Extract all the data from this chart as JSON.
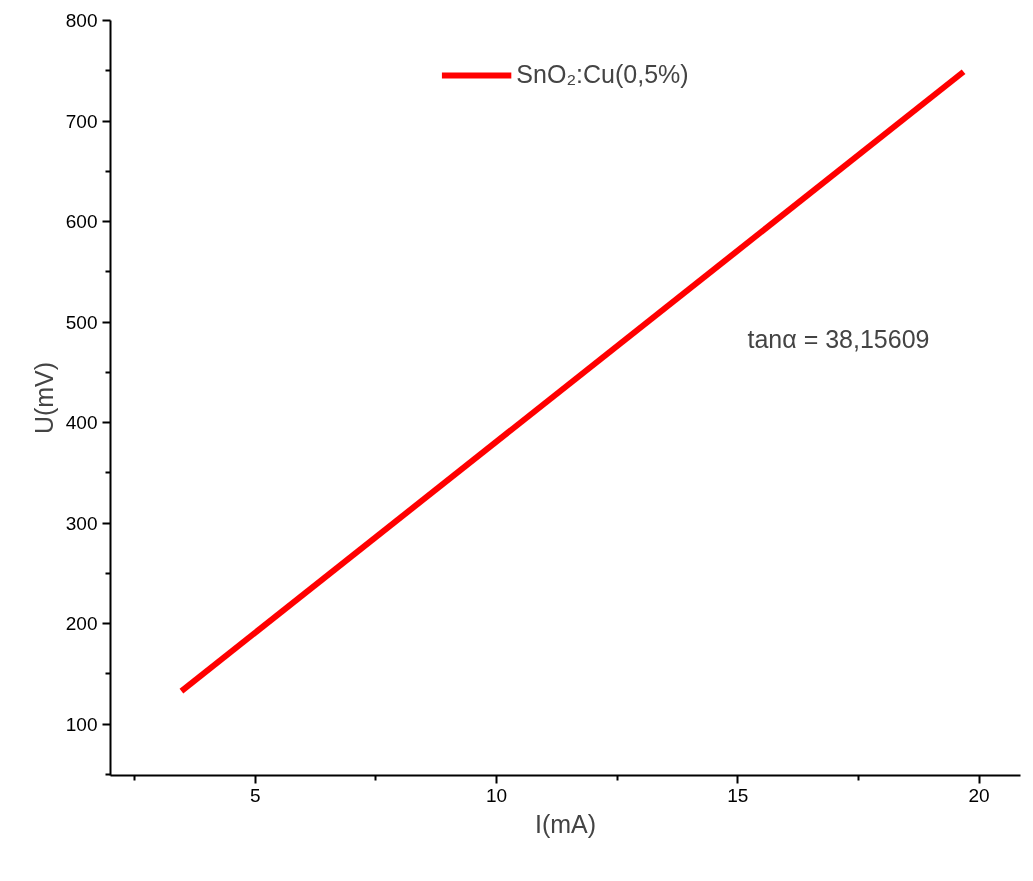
{
  "chart_data": {
    "type": "line",
    "xlabel": "I(mA)",
    "ylabel": "U(mV)",
    "series": [
      {
        "name": "SnO₂:Cu(0,5%)",
        "color": "#ff0000",
        "x": [
          3.47,
          19.68
        ],
        "values": [
          133,
          749
        ]
      }
    ],
    "xlim": [
      2,
      20.86
    ],
    "ylim": [
      49,
      800
    ],
    "xticks": [
      {
        "value": 2.5,
        "label": null
      },
      5,
      {
        "value": 7.5,
        "label": null
      },
      10,
      {
        "value": 12.5,
        "label": null
      },
      15,
      {
        "value": 17.5,
        "label": null
      },
      20
    ],
    "yticks": [
      {
        "value": 50,
        "label": null
      },
      100,
      {
        "value": 150,
        "label": null
      },
      200,
      {
        "value": 250,
        "label": null
      },
      300,
      {
        "value": 350,
        "label": null
      },
      400,
      {
        "value": 450,
        "label": null
      },
      500,
      {
        "value": 550,
        "label": null
      },
      600,
      {
        "value": 650,
        "label": null
      },
      700,
      {
        "value": 750,
        "label": null
      },
      800
    ],
    "annotations": [
      "tanα = 38,15609"
    ],
    "legend": "top",
    "grid": false,
    "line_style": "solid",
    "marker": "none"
  }
}
